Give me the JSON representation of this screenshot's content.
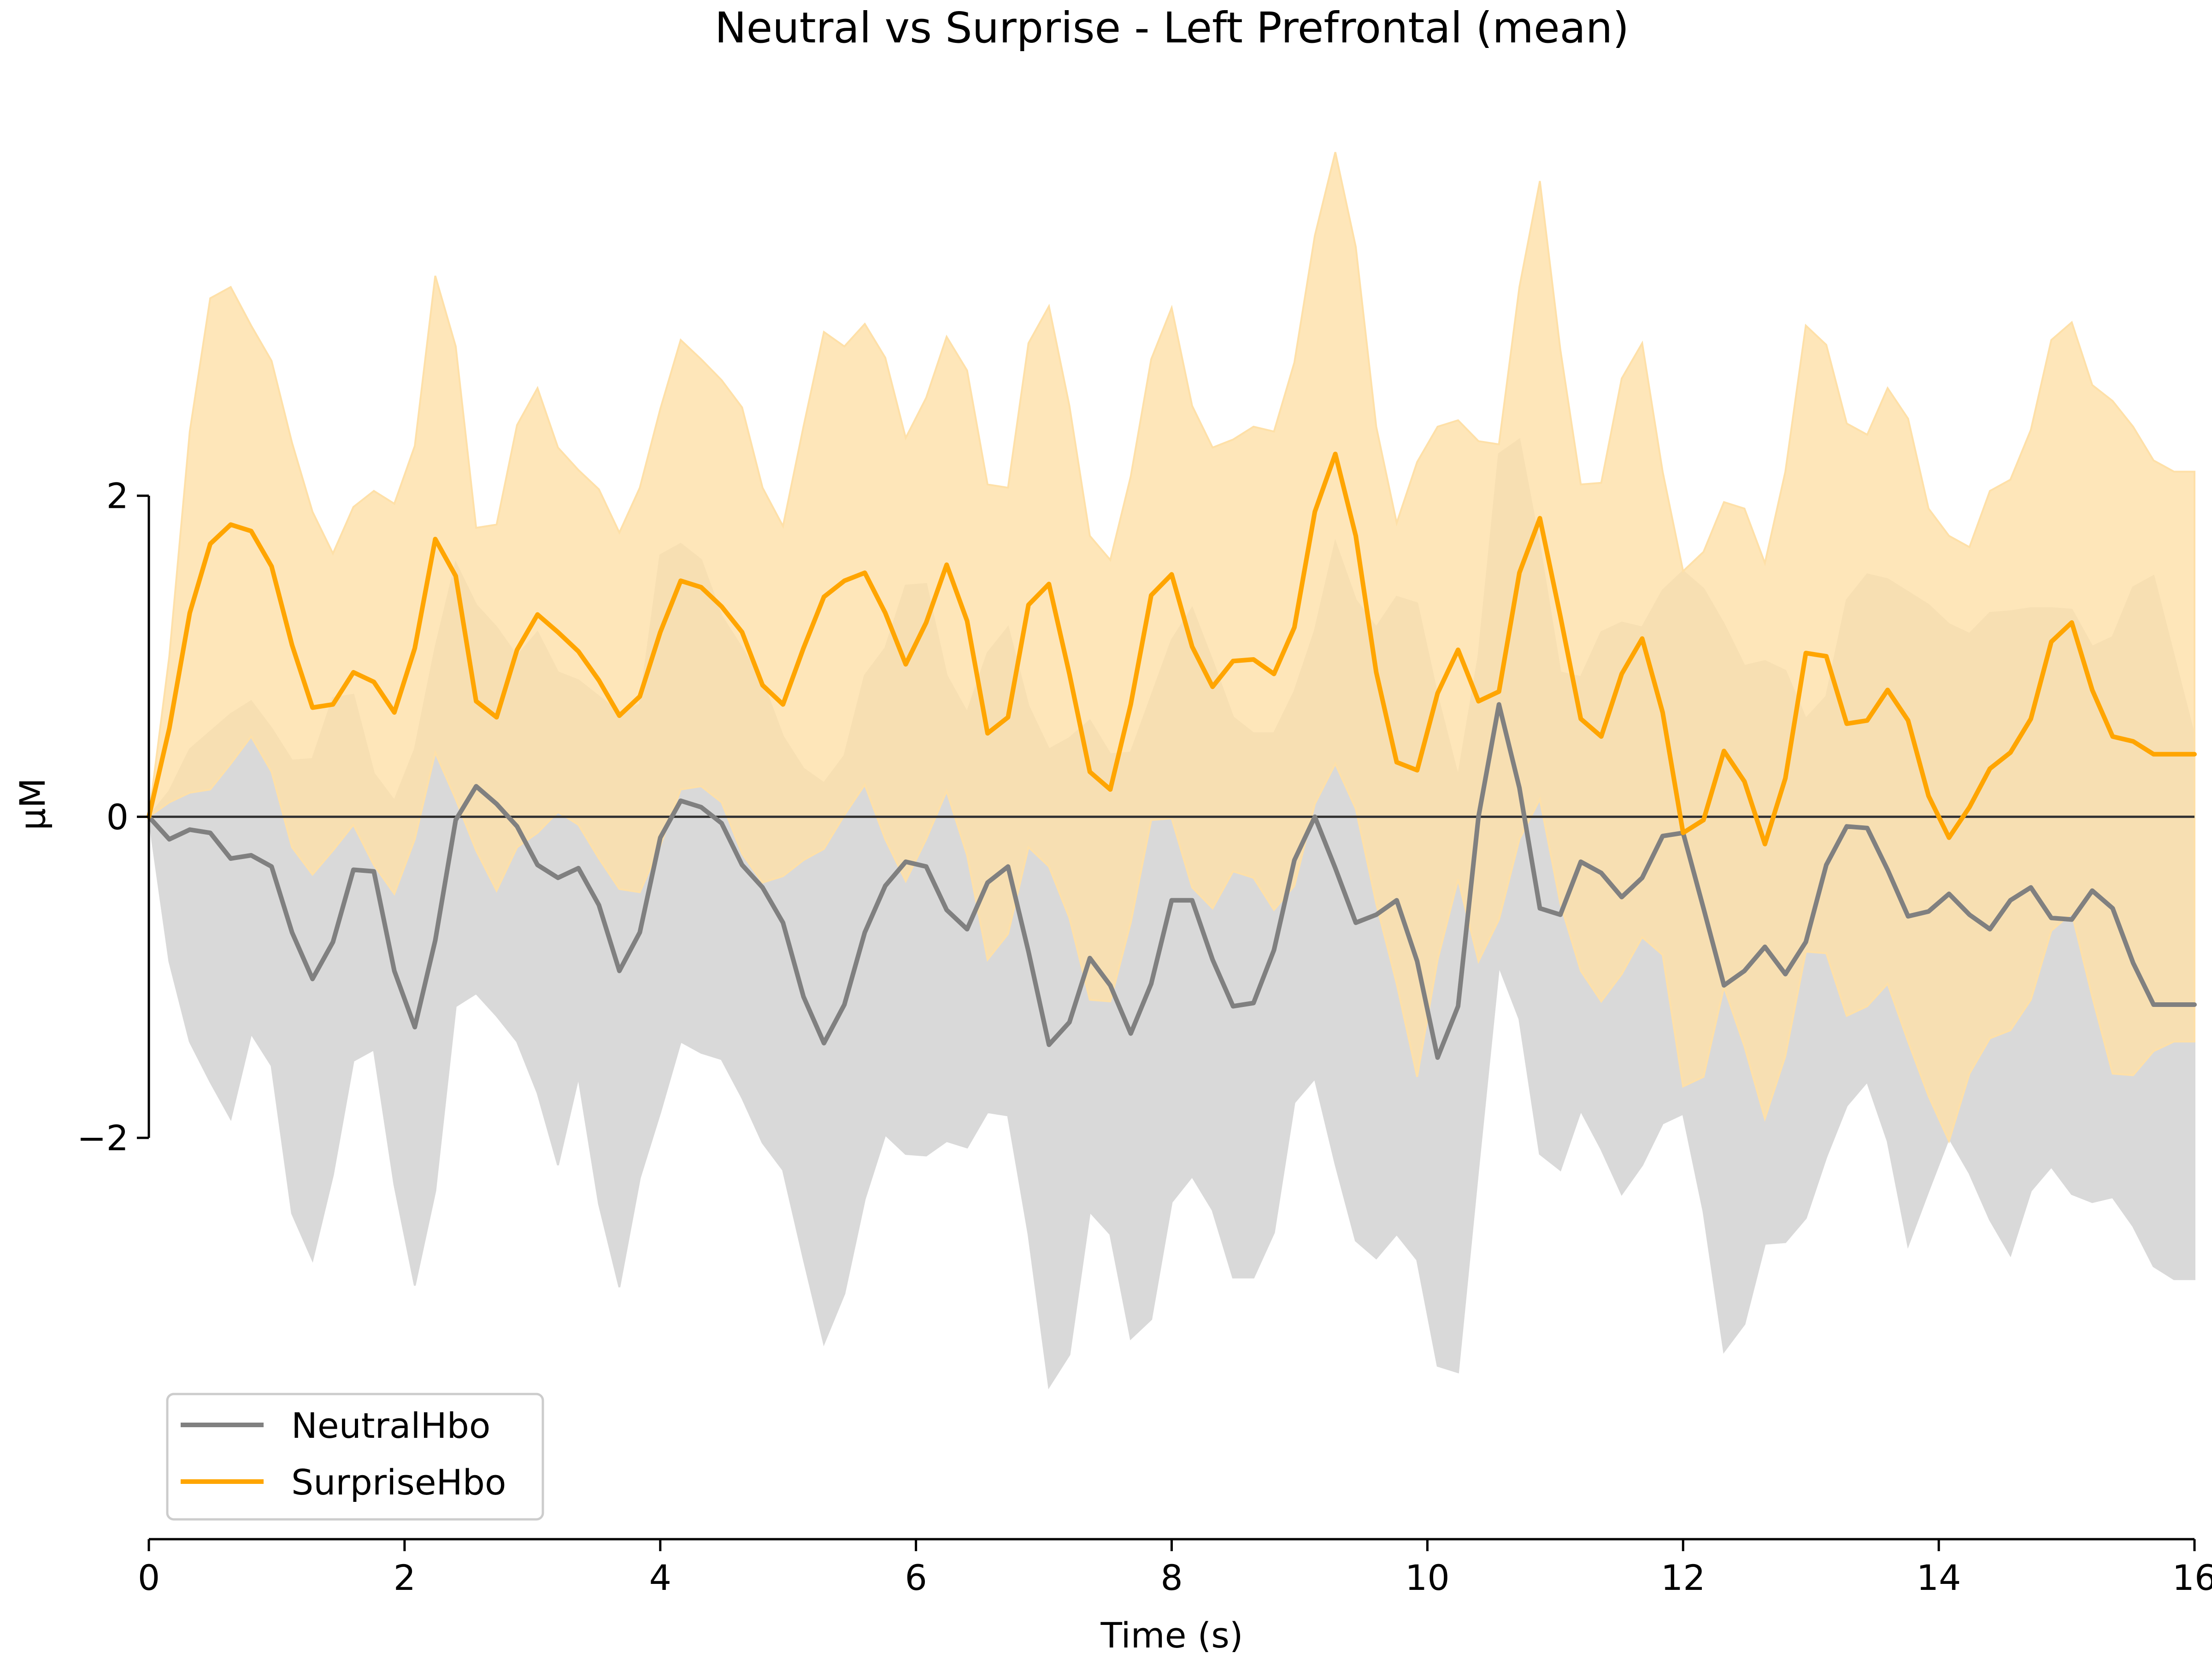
{
  "chart_data": {
    "type": "line",
    "title": "Neutral vs Surprise - Left Prefrontal (mean)",
    "xlabel": "Time (s)",
    "ylabel": "µM",
    "xlim": [
      0,
      16
    ],
    "ylim": [
      -4.5,
      4.6
    ],
    "xticks": [
      "0",
      "2",
      "4",
      "6",
      "8",
      "10",
      "12",
      "14",
      "16"
    ],
    "yticks": [
      "2",
      "0",
      "−2"
    ],
    "grid": false,
    "zero_line": true,
    "legend_position": "lower-left",
    "x": [
      0.0,
      0.16,
      0.32,
      0.48,
      0.64,
      0.8,
      0.96,
      1.12,
      1.28,
      1.44,
      1.6,
      1.76,
      1.92,
      2.08,
      2.24,
      2.4,
      2.56,
      2.72,
      2.88,
      3.04,
      3.2,
      3.36,
      3.52,
      3.68,
      3.84,
      4.0,
      4.16,
      4.32,
      4.48,
      4.64,
      4.8,
      4.96,
      5.12,
      5.28,
      5.44,
      5.6,
      5.76,
      5.92,
      6.08,
      6.24,
      6.4,
      6.56,
      6.72,
      6.88,
      7.04,
      7.2,
      7.36,
      7.52,
      7.68,
      7.84,
      8.0,
      8.16,
      8.32,
      8.48,
      8.64,
      8.8,
      8.96,
      9.12,
      9.28,
      9.44,
      9.6,
      9.76,
      9.92,
      10.08,
      10.24,
      10.4,
      10.56,
      10.72,
      10.88,
      11.04,
      11.2,
      11.36,
      11.52,
      11.68,
      11.84,
      12.0,
      12.16,
      12.32,
      12.48,
      12.64,
      12.8,
      12.96,
      13.12,
      13.28,
      13.44,
      13.6,
      13.76,
      13.92,
      14.08,
      14.24,
      14.4,
      14.56,
      14.72,
      14.88,
      15.04,
      15.2,
      15.36,
      15.52,
      15.68,
      15.84,
      16.0
    ],
    "series": [
      {
        "name": "NeutralHbo",
        "color": "#808080",
        "band_color": "#d9d9d9",
        "values": [
          0.0,
          -0.14,
          -0.08,
          -0.1,
          -0.26,
          -0.24,
          -0.31,
          -0.72,
          -1.01,
          -0.78,
          -0.33,
          -0.34,
          -0.96,
          -1.31,
          -0.77,
          -0.02,
          0.19,
          0.08,
          -0.06,
          -0.3,
          -0.38,
          -0.32,
          -0.55,
          -0.96,
          -0.72,
          -0.13,
          0.1,
          0.06,
          -0.04,
          -0.3,
          -0.44,
          -0.66,
          -1.12,
          -1.41,
          -1.17,
          -0.72,
          -0.43,
          -0.28,
          -0.31,
          -0.58,
          -0.7,
          -0.41,
          -0.31,
          -0.84,
          -1.42,
          -1.28,
          -0.88,
          -1.05,
          -1.35,
          -1.04,
          -0.52,
          -0.52,
          -0.89,
          -1.18,
          -1.16,
          -0.83,
          -0.27,
          0.0,
          -0.32,
          -0.66,
          -0.61,
          -0.52,
          -0.9,
          -1.5,
          -1.18,
          0.0,
          0.7,
          0.18,
          -0.57,
          -0.61,
          -0.28,
          -0.35,
          -0.5,
          -0.38,
          -0.12,
          -0.1,
          -0.57,
          -1.05,
          -0.96,
          -0.81,
          -0.98,
          -0.78,
          -0.3,
          -0.06,
          -0.07,
          -0.33,
          -0.62,
          -0.59,
          -0.48,
          -0.61,
          -0.7,
          -0.52,
          -0.44,
          -0.63,
          -0.64,
          -0.46,
          -0.57,
          -0.91,
          -1.17,
          -1.17,
          -1.17
        ],
        "upper": [
          0.0,
          0.16,
          0.42,
          0.53,
          0.64,
          0.72,
          0.55,
          0.35,
          0.36,
          0.74,
          0.76,
          0.27,
          0.1,
          0.42,
          1.05,
          1.58,
          1.32,
          1.18,
          1.0,
          1.15,
          0.9,
          0.85,
          0.75,
          0.65,
          0.7,
          1.63,
          1.7,
          1.6,
          1.25,
          1.05,
          0.84,
          0.5,
          0.3,
          0.21,
          0.38,
          0.88,
          1.05,
          1.44,
          1.45,
          0.88,
          0.65,
          1.02,
          1.18,
          0.69,
          0.42,
          0.49,
          0.6,
          0.39,
          0.4,
          0.75,
          1.1,
          1.3,
          0.97,
          0.62,
          0.52,
          0.52,
          0.78,
          1.16,
          1.71,
          1.35,
          1.18,
          1.37,
          1.33,
          0.75,
          0.25,
          1.0,
          2.26,
          2.35,
          1.68,
          0.9,
          0.87,
          1.15,
          1.21,
          1.18,
          1.41,
          1.53,
          1.42,
          1.2,
          0.94,
          0.97,
          0.91,
          0.61,
          0.75,
          1.35,
          1.51,
          1.48,
          1.4,
          1.32,
          1.2,
          1.14,
          1.27,
          1.28,
          1.3,
          1.3,
          1.29,
          1.06,
          1.12,
          1.43,
          1.5,
          1.0,
          0.5
        ],
        "lower": [
          0.0,
          -0.9,
          -1.4,
          -1.65,
          -1.88,
          -1.35,
          -1.55,
          -2.47,
          -2.76,
          -2.23,
          -1.52,
          -1.45,
          -2.29,
          -2.92,
          -2.33,
          -1.18,
          -1.1,
          -1.24,
          -1.4,
          -1.72,
          -2.17,
          -1.62,
          -2.41,
          -2.93,
          -2.25,
          -1.84,
          -1.4,
          -1.47,
          -1.51,
          -1.75,
          -2.03,
          -2.2,
          -2.75,
          -3.28,
          -2.97,
          -2.38,
          -1.98,
          -2.1,
          -2.11,
          -2.02,
          -2.06,
          -1.84,
          -1.86,
          -2.6,
          -3.55,
          -3.35,
          -2.46,
          -2.6,
          -3.25,
          -3.13,
          -2.4,
          -2.24,
          -2.45,
          -2.87,
          -2.87,
          -2.59,
          -1.78,
          -1.63,
          -2.16,
          -2.64,
          -2.75,
          -2.6,
          -2.76,
          -3.42,
          -3.46,
          -2.18,
          -0.93,
          -1.26,
          -2.1,
          -2.2,
          -1.83,
          -2.07,
          -2.35,
          -2.17,
          -1.91,
          -1.85,
          -2.46,
          -3.33,
          -3.16,
          -2.66,
          -2.65,
          -2.5,
          -2.12,
          -1.8,
          -1.65,
          -2.02,
          -2.67,
          -2.33,
          -2.0,
          -2.22,
          -2.51,
          -2.73,
          -2.33,
          -2.18,
          -2.35,
          -2.4,
          -2.37,
          -2.55,
          -2.8,
          -2.88,
          -2.88
        ]
      },
      {
        "name": "SurpriseHbo",
        "color": "#ffa500",
        "band_color": "#fee0a8",
        "values": [
          0.0,
          0.55,
          1.27,
          1.7,
          1.82,
          1.78,
          1.56,
          1.07,
          0.68,
          0.7,
          0.9,
          0.84,
          0.65,
          1.05,
          1.73,
          1.5,
          0.72,
          0.62,
          1.04,
          1.26,
          1.15,
          1.03,
          0.85,
          0.63,
          0.75,
          1.15,
          1.47,
          1.43,
          1.31,
          1.15,
          0.82,
          0.7,
          1.05,
          1.37,
          1.47,
          1.52,
          1.27,
          0.95,
          1.21,
          1.57,
          1.22,
          0.52,
          0.62,
          1.32,
          1.45,
          0.89,
          0.28,
          0.17,
          0.7,
          1.38,
          1.51,
          1.06,
          0.81,
          0.97,
          0.98,
          0.89,
          1.18,
          1.9,
          2.26,
          1.75,
          0.9,
          0.34,
          0.29,
          0.77,
          1.04,
          0.72,
          0.78,
          1.52,
          1.86,
          1.25,
          0.61,
          0.5,
          0.89,
          1.11,
          0.65,
          -0.1,
          -0.02,
          0.41,
          0.22,
          -0.17,
          0.24,
          1.02,
          1.0,
          0.58,
          0.6,
          0.79,
          0.6,
          0.13,
          -0.13,
          0.06,
          0.3,
          0.4,
          0.61,
          1.09,
          1.21,
          0.79,
          0.5,
          0.47,
          0.39,
          0.39,
          0.39
        ],
        "upper": [
          0.0,
          1.0,
          2.4,
          3.23,
          3.3,
          3.06,
          2.84,
          2.33,
          1.9,
          1.64,
          1.93,
          2.03,
          1.95,
          2.31,
          3.37,
          2.93,
          1.8,
          1.82,
          2.44,
          2.67,
          2.3,
          2.16,
          2.04,
          1.77,
          2.05,
          2.54,
          2.97,
          2.85,
          2.72,
          2.55,
          2.05,
          1.81,
          2.43,
          3.02,
          2.93,
          3.07,
          2.86,
          2.36,
          2.61,
          2.99,
          2.78,
          2.07,
          2.05,
          2.95,
          3.18,
          2.56,
          1.75,
          1.6,
          2.12,
          2.85,
          3.17,
          2.56,
          2.3,
          2.35,
          2.43,
          2.4,
          2.83,
          3.62,
          4.14,
          3.55,
          2.43,
          1.83,
          2.21,
          2.43,
          2.47,
          2.34,
          2.32,
          3.3,
          3.96,
          2.91,
          2.07,
          2.08,
          2.73,
          2.95,
          2.15,
          1.53,
          1.65,
          1.96,
          1.92,
          1.58,
          2.15,
          3.06,
          2.94,
          2.45,
          2.38,
          2.67,
          2.48,
          1.92,
          1.75,
          1.68,
          2.03,
          2.1,
          2.41,
          2.97,
          3.08,
          2.69,
          2.59,
          2.43,
          2.22,
          2.15,
          2.15
        ],
        "lower": [
          0.0,
          0.09,
          0.15,
          0.17,
          0.33,
          0.5,
          0.28,
          -0.19,
          -0.36,
          -0.21,
          -0.05,
          -0.3,
          -0.48,
          -0.14,
          0.4,
          0.11,
          -0.21,
          -0.46,
          -0.19,
          -0.1,
          0.03,
          -0.05,
          -0.26,
          -0.45,
          -0.47,
          -0.18,
          0.17,
          0.19,
          0.09,
          -0.23,
          -0.41,
          -0.37,
          -0.27,
          -0.2,
          0.01,
          0.2,
          -0.14,
          -0.4,
          -0.14,
          0.16,
          -0.24,
          -0.89,
          -0.73,
          -0.19,
          -0.31,
          -0.63,
          -1.14,
          -1.15,
          -0.66,
          -0.02,
          -0.01,
          -0.44,
          -0.57,
          -0.34,
          -0.38,
          -0.58,
          -0.43,
          0.08,
          0.33,
          0.05,
          -0.54,
          -1.04,
          -1.62,
          -0.89,
          -0.39,
          -0.9,
          -0.64,
          -0.14,
          0.11,
          -0.54,
          -0.96,
          -1.15,
          -0.98,
          -0.75,
          -0.86,
          -1.68,
          -1.62,
          -1.06,
          -1.43,
          -1.88,
          -1.49,
          -0.84,
          -0.85,
          -1.24,
          -1.18,
          -1.04,
          -1.4,
          -1.74,
          -2.02,
          -1.6,
          -1.38,
          -1.33,
          -1.14,
          -0.71,
          -0.6,
          -1.12,
          -1.6,
          -1.61,
          -1.46,
          -1.4,
          -1.4
        ]
      }
    ]
  }
}
